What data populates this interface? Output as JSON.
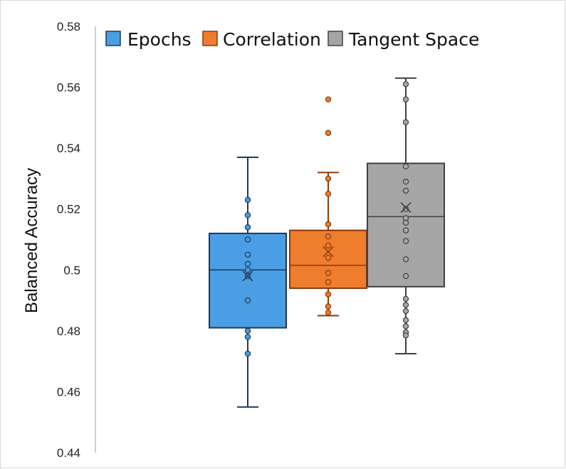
{
  "chart_data": {
    "type": "box",
    "ylabel": "Balanced Accuracy",
    "ylim": [
      0.44,
      0.58
    ],
    "yticks": [
      0.44,
      0.46,
      0.48,
      0.5,
      0.52,
      0.54,
      0.56,
      0.58
    ],
    "ytick_labels": [
      "0.44",
      "0.46",
      "0.48",
      "0.5",
      "0.52",
      "0.54",
      "0.56",
      "0.58"
    ],
    "legend": {
      "position": "top"
    },
    "series": [
      {
        "name": "Epochs",
        "fill": "#4a9ee3",
        "stroke": "#1f3a5a",
        "point_fill": "#4a9ee3",
        "whisker_low": 0.455,
        "q1": 0.481,
        "median": 0.5,
        "q3": 0.512,
        "whisker_high": 0.537,
        "mean": 0.498,
        "points": [
          0.523,
          0.518,
          0.514,
          0.51,
          0.505,
          0.502,
          0.5,
          0.498,
          0.49,
          0.48,
          0.478,
          0.4725
        ]
      },
      {
        "name": "Correlation",
        "fill": "#ee7d2e",
        "stroke": "#8a3a0a",
        "point_fill": "#ee7d2e",
        "whisker_low": 0.485,
        "q1": 0.494,
        "median": 0.5015,
        "q3": 0.513,
        "whisker_high": 0.532,
        "mean": 0.506,
        "points": [
          0.556,
          0.545,
          0.53,
          0.525,
          0.515,
          0.511,
          0.508,
          0.504,
          0.499,
          0.496,
          0.492,
          0.488,
          0.486
        ]
      },
      {
        "name": "Tangent Space",
        "fill": "#a6a6a6",
        "stroke": "#404040",
        "point_fill": "#a6a6a6",
        "whisker_low": 0.4725,
        "q1": 0.4945,
        "median": 0.5175,
        "q3": 0.535,
        "whisker_high": 0.563,
        "mean": 0.5205,
        "points": [
          0.561,
          0.556,
          0.5485,
          0.534,
          0.529,
          0.526,
          0.52,
          0.517,
          0.5155,
          0.513,
          0.5095,
          0.5035,
          0.498,
          0.4905,
          0.4885,
          0.4865,
          0.4835,
          0.4815,
          0.4795,
          0.4785
        ]
      }
    ]
  }
}
